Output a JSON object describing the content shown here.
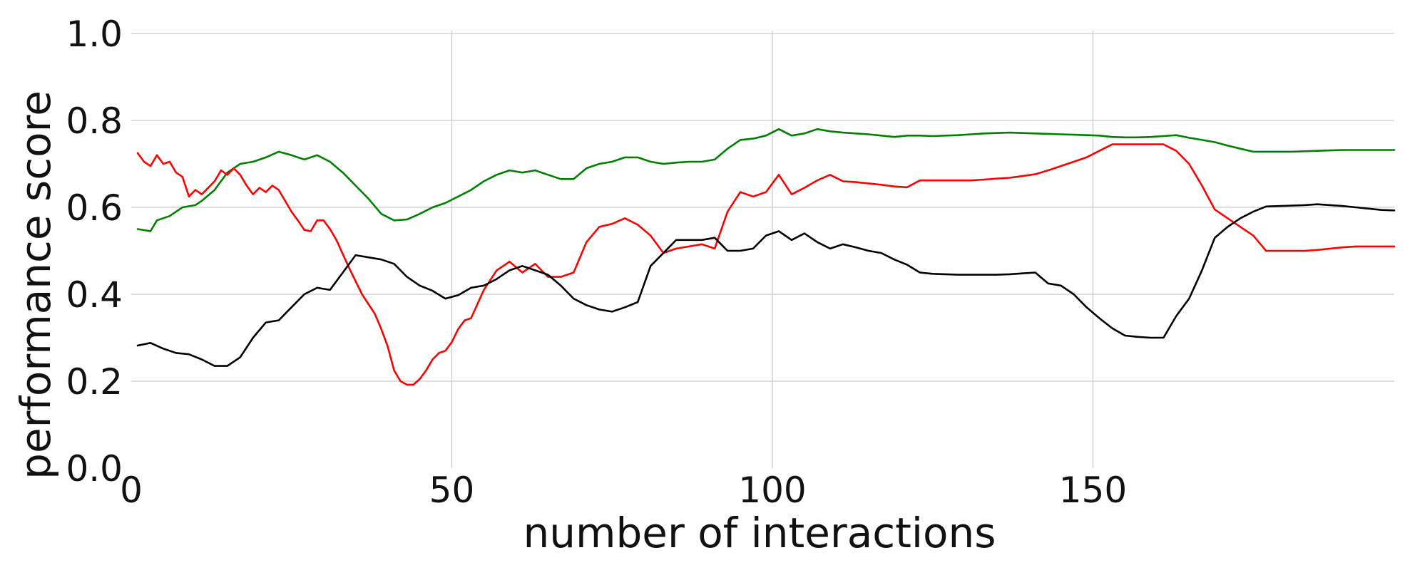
{
  "chart_data": {
    "type": "line",
    "title": "",
    "xlabel": "number of interactions",
    "ylabel": "performance score",
    "xlim": [
      0,
      197
    ],
    "ylim": [
      0,
      1
    ],
    "grid": true,
    "legend": "none",
    "xticks": [
      0,
      50,
      100,
      150
    ],
    "xtick_labels": [
      "0",
      "50",
      "100",
      "150"
    ],
    "yticks": [
      0.0,
      0.2,
      0.4,
      0.6,
      0.8,
      1.0
    ],
    "ytick_labels": [
      "0.0",
      "0.2",
      "0.4",
      "0.6",
      "0.8",
      "1.0"
    ],
    "series": [
      {
        "color": "#008000",
        "x": [
          1,
          3,
          4,
          6,
          8,
          10,
          11,
          13,
          15,
          17,
          19,
          21,
          23,
          25,
          27,
          29,
          31,
          33,
          35,
          37,
          39,
          41,
          43,
          45,
          47,
          49,
          51,
          53,
          55,
          57,
          59,
          61,
          63,
          65,
          67,
          69,
          71,
          73,
          75,
          77,
          79,
          81,
          83,
          85,
          87,
          89,
          91,
          93,
          95,
          97,
          99,
          101,
          103,
          105,
          107,
          109,
          111,
          113,
          115,
          117,
          119,
          121,
          123,
          125,
          127,
          129,
          131,
          133,
          135,
          137,
          139,
          141,
          143,
          145,
          147,
          149,
          151,
          153,
          155,
          157,
          159,
          161,
          163,
          165,
          167,
          169,
          171,
          173,
          175,
          177,
          179,
          181,
          183,
          185,
          187,
          189,
          191,
          193,
          195,
          197
        ],
        "y": [
          0.55,
          0.545,
          0.57,
          0.58,
          0.6,
          0.605,
          0.615,
          0.64,
          0.68,
          0.7,
          0.705,
          0.715,
          0.728,
          0.72,
          0.71,
          0.72,
          0.705,
          0.68,
          0.65,
          0.62,
          0.585,
          0.57,
          0.572,
          0.585,
          0.6,
          0.61,
          0.625,
          0.64,
          0.66,
          0.675,
          0.685,
          0.68,
          0.685,
          0.675,
          0.665,
          0.665,
          0.69,
          0.7,
          0.705,
          0.715,
          0.715,
          0.705,
          0.7,
          0.703,
          0.705,
          0.705,
          0.71,
          0.735,
          0.755,
          0.758,
          0.765,
          0.78,
          0.765,
          0.77,
          0.78,
          0.775,
          0.772,
          0.77,
          0.768,
          0.765,
          0.762,
          0.765,
          0.765,
          0.764,
          0.765,
          0.766,
          0.768,
          0.77,
          0.771,
          0.772,
          0.771,
          0.77,
          0.769,
          0.768,
          0.767,
          0.766,
          0.765,
          0.762,
          0.761,
          0.761,
          0.762,
          0.764,
          0.766,
          0.76,
          0.755,
          0.75,
          0.742,
          0.735,
          0.728,
          0.728,
          0.728,
          0.728,
          0.729,
          0.73,
          0.731,
          0.732,
          0.732,
          0.732,
          0.732,
          0.732
        ]
      },
      {
        "color": "#ff0000",
        "x": [
          1,
          2,
          3,
          4,
          5,
          6,
          7,
          8,
          9,
          10,
          11,
          12,
          13,
          14,
          15,
          16,
          17,
          18,
          19,
          20,
          21,
          22,
          23,
          24,
          25,
          26,
          27,
          28,
          29,
          30,
          31,
          32,
          34,
          36,
          38,
          39,
          40,
          41,
          42,
          43,
          44,
          45,
          46,
          47,
          48,
          49,
          50,
          51,
          52,
          53,
          55,
          57,
          59,
          61,
          63,
          65,
          67,
          69,
          71,
          73,
          75,
          77,
          79,
          81,
          83,
          85,
          87,
          89,
          91,
          93,
          95,
          97,
          99,
          101,
          103,
          105,
          107,
          109,
          111,
          113,
          115,
          117,
          119,
          121,
          123,
          125,
          127,
          129,
          131,
          133,
          135,
          137,
          139,
          141,
          143,
          145,
          147,
          149,
          151,
          153,
          155,
          157,
          159,
          161,
          163,
          165,
          167,
          169,
          171,
          173,
          175,
          177,
          179,
          181,
          183,
          185,
          187,
          189,
          191,
          193,
          195,
          197
        ],
        "y": [
          0.725,
          0.705,
          0.695,
          0.72,
          0.7,
          0.705,
          0.68,
          0.67,
          0.625,
          0.64,
          0.63,
          0.645,
          0.66,
          0.685,
          0.675,
          0.69,
          0.675,
          0.65,
          0.63,
          0.645,
          0.635,
          0.65,
          0.64,
          0.615,
          0.59,
          0.57,
          0.548,
          0.545,
          0.57,
          0.57,
          0.55,
          0.525,
          0.46,
          0.4,
          0.355,
          0.32,
          0.28,
          0.225,
          0.2,
          0.192,
          0.192,
          0.205,
          0.225,
          0.25,
          0.265,
          0.27,
          0.29,
          0.32,
          0.34,
          0.345,
          0.41,
          0.455,
          0.475,
          0.45,
          0.47,
          0.44,
          0.44,
          0.45,
          0.52,
          0.555,
          0.562,
          0.575,
          0.56,
          0.535,
          0.495,
          0.505,
          0.51,
          0.515,
          0.505,
          0.59,
          0.635,
          0.625,
          0.635,
          0.675,
          0.63,
          0.645,
          0.662,
          0.675,
          0.66,
          0.658,
          0.655,
          0.652,
          0.648,
          0.646,
          0.662,
          0.662,
          0.662,
          0.662,
          0.662,
          0.664,
          0.666,
          0.668,
          0.672,
          0.676,
          0.685,
          0.695,
          0.705,
          0.715,
          0.73,
          0.745,
          0.745,
          0.745,
          0.745,
          0.745,
          0.73,
          0.7,
          0.65,
          0.595,
          0.575,
          0.555,
          0.535,
          0.5,
          0.5,
          0.5,
          0.5,
          0.502,
          0.505,
          0.508,
          0.51,
          0.51,
          0.51,
          0.51
        ]
      },
      {
        "color": "#000000",
        "x": [
          1,
          3,
          5,
          7,
          9,
          11,
          13,
          15,
          17,
          19,
          21,
          23,
          25,
          27,
          29,
          31,
          33,
          35,
          37,
          39,
          41,
          43,
          45,
          47,
          49,
          51,
          53,
          55,
          57,
          59,
          61,
          63,
          65,
          67,
          69,
          71,
          73,
          75,
          77,
          79,
          81,
          83,
          85,
          87,
          89,
          91,
          93,
          95,
          97,
          99,
          101,
          103,
          105,
          107,
          109,
          111,
          113,
          115,
          117,
          119,
          121,
          123,
          125,
          127,
          129,
          131,
          133,
          135,
          137,
          139,
          141,
          143,
          145,
          147,
          149,
          151,
          153,
          155,
          157,
          159,
          161,
          163,
          165,
          167,
          169,
          171,
          173,
          175,
          177,
          179,
          181,
          183,
          185,
          187,
          189,
          191,
          193,
          195,
          197
        ],
        "y": [
          0.282,
          0.288,
          0.275,
          0.265,
          0.262,
          0.25,
          0.235,
          0.235,
          0.255,
          0.3,
          0.335,
          0.34,
          0.37,
          0.4,
          0.415,
          0.41,
          0.45,
          0.49,
          0.485,
          0.48,
          0.47,
          0.44,
          0.42,
          0.408,
          0.39,
          0.398,
          0.415,
          0.42,
          0.435,
          0.455,
          0.465,
          0.455,
          0.445,
          0.42,
          0.39,
          0.375,
          0.365,
          0.36,
          0.37,
          0.382,
          0.465,
          0.495,
          0.525,
          0.525,
          0.525,
          0.53,
          0.5,
          0.5,
          0.505,
          0.535,
          0.545,
          0.525,
          0.54,
          0.52,
          0.505,
          0.515,
          0.508,
          0.5,
          0.495,
          0.48,
          0.468,
          0.45,
          0.447,
          0.446,
          0.445,
          0.445,
          0.445,
          0.445,
          0.446,
          0.448,
          0.45,
          0.425,
          0.42,
          0.4,
          0.37,
          0.345,
          0.322,
          0.305,
          0.302,
          0.3,
          0.3,
          0.35,
          0.39,
          0.455,
          0.53,
          0.555,
          0.575,
          0.59,
          0.602,
          0.603,
          0.604,
          0.605,
          0.607,
          0.605,
          0.603,
          0.6,
          0.597,
          0.594,
          0.593
        ]
      }
    ]
  }
}
